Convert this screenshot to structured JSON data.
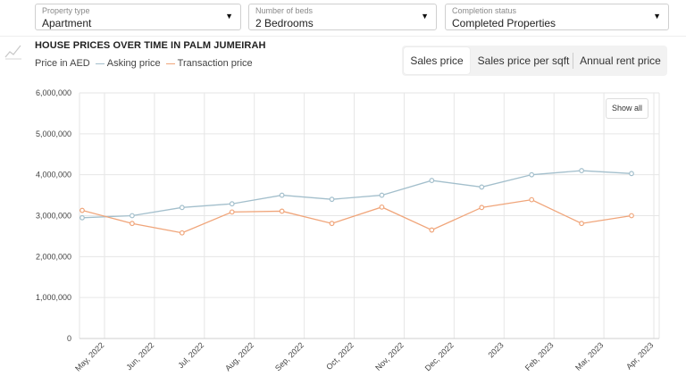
{
  "filters": [
    {
      "label": "Property type",
      "value": "Apartment"
    },
    {
      "label": "Number of beds",
      "value": "2 Bedrooms"
    },
    {
      "label": "Completion status",
      "value": "Completed Properties"
    }
  ],
  "header": {
    "title": "HOUSE PRICES OVER TIME IN PALM JUMEIRAH",
    "subtitle": "Price in AED",
    "legend": [
      "Asking price",
      "Transaction price"
    ]
  },
  "tabs": [
    "Sales price",
    "Sales price per sqft",
    "Annual rent price"
  ],
  "active_tab": "Sales price",
  "show_all_label": "Show all",
  "colors": {
    "asking": "#a3bfcc",
    "transaction": "#f0a57a",
    "grid": "#e6e6e6"
  },
  "chart_data": {
    "type": "line",
    "x": [
      "May, 2022",
      "Jun, 2022",
      "Jul, 2022",
      "Aug, 2022",
      "Sep, 2022",
      "Oct, 2022",
      "Nov, 2022",
      "Dec, 2022",
      "2023",
      "Feb, 2023",
      "Mar, 2023",
      "Apr, 2023"
    ],
    "series": [
      {
        "name": "Asking price",
        "values": [
          2950000,
          3000000,
          3200000,
          3290000,
          3500000,
          3400000,
          3500000,
          3860000,
          3700000,
          4000000,
          4100000,
          4030000
        ]
      },
      {
        "name": "Transaction price",
        "values": [
          3130000,
          2810000,
          2580000,
          3090000,
          3110000,
          2810000,
          3210000,
          2650000,
          3200000,
          3390000,
          2810000,
          3000000
        ]
      }
    ],
    "ylim": [
      0,
      6000000
    ],
    "yticks": [
      "0",
      "1,000,000",
      "2,000,000",
      "3,000,000",
      "4,000,000",
      "5,000,000",
      "6,000,000"
    ],
    "grid": true
  }
}
